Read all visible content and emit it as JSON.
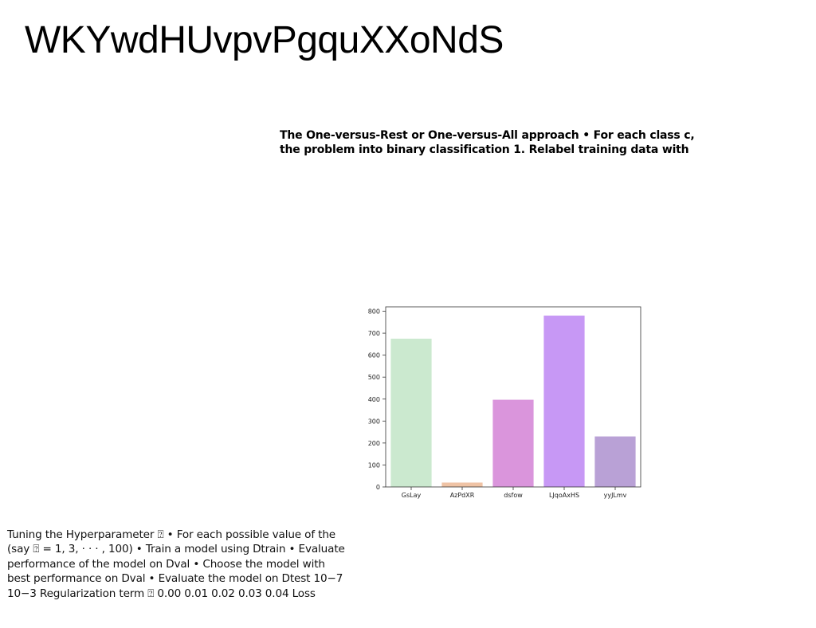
{
  "page": {
    "title": "WKYwdHUvpvPgquXXoNdS"
  },
  "callout": {
    "lines": [
      "The One-versus-Rest or One-versus-All approach • For each class c,",
      "the problem into binary classification 1. Relabel training data with"
    ]
  },
  "notes": {
    "lines": [
      "Tuning the Hyperparameter ⍰ • For each possible value of the",
      "(say ⍰ = 1, 3, · · · , 100) • Train a model using Dtrain • Evaluate",
      "performance of the model on Dval • Choose the model with",
      "best performance on Dval • Evaluate the model on Dtest 10−7",
      "10−3 Regularization term ⍰ 0.00 0.01 0.02 0.03 0.04 Loss"
    ]
  },
  "chart_data": {
    "type": "bar",
    "categories": [
      "GsLay",
      "AzPdXR",
      "dsfow",
      "LJqoAxHS",
      "yyJLmv"
    ],
    "values": [
      675,
      20,
      397,
      780,
      230
    ],
    "colors": [
      "#cbe9cf",
      "#efc3a5",
      "#da95dc",
      "#c798f5",
      "#b9a1d6"
    ],
    "ylim": [
      0,
      820
    ],
    "yticks": [
      0,
      100,
      200,
      300,
      400,
      500,
      600,
      700,
      800
    ],
    "grid": false,
    "title": "",
    "xlabel": "",
    "ylabel": ""
  }
}
